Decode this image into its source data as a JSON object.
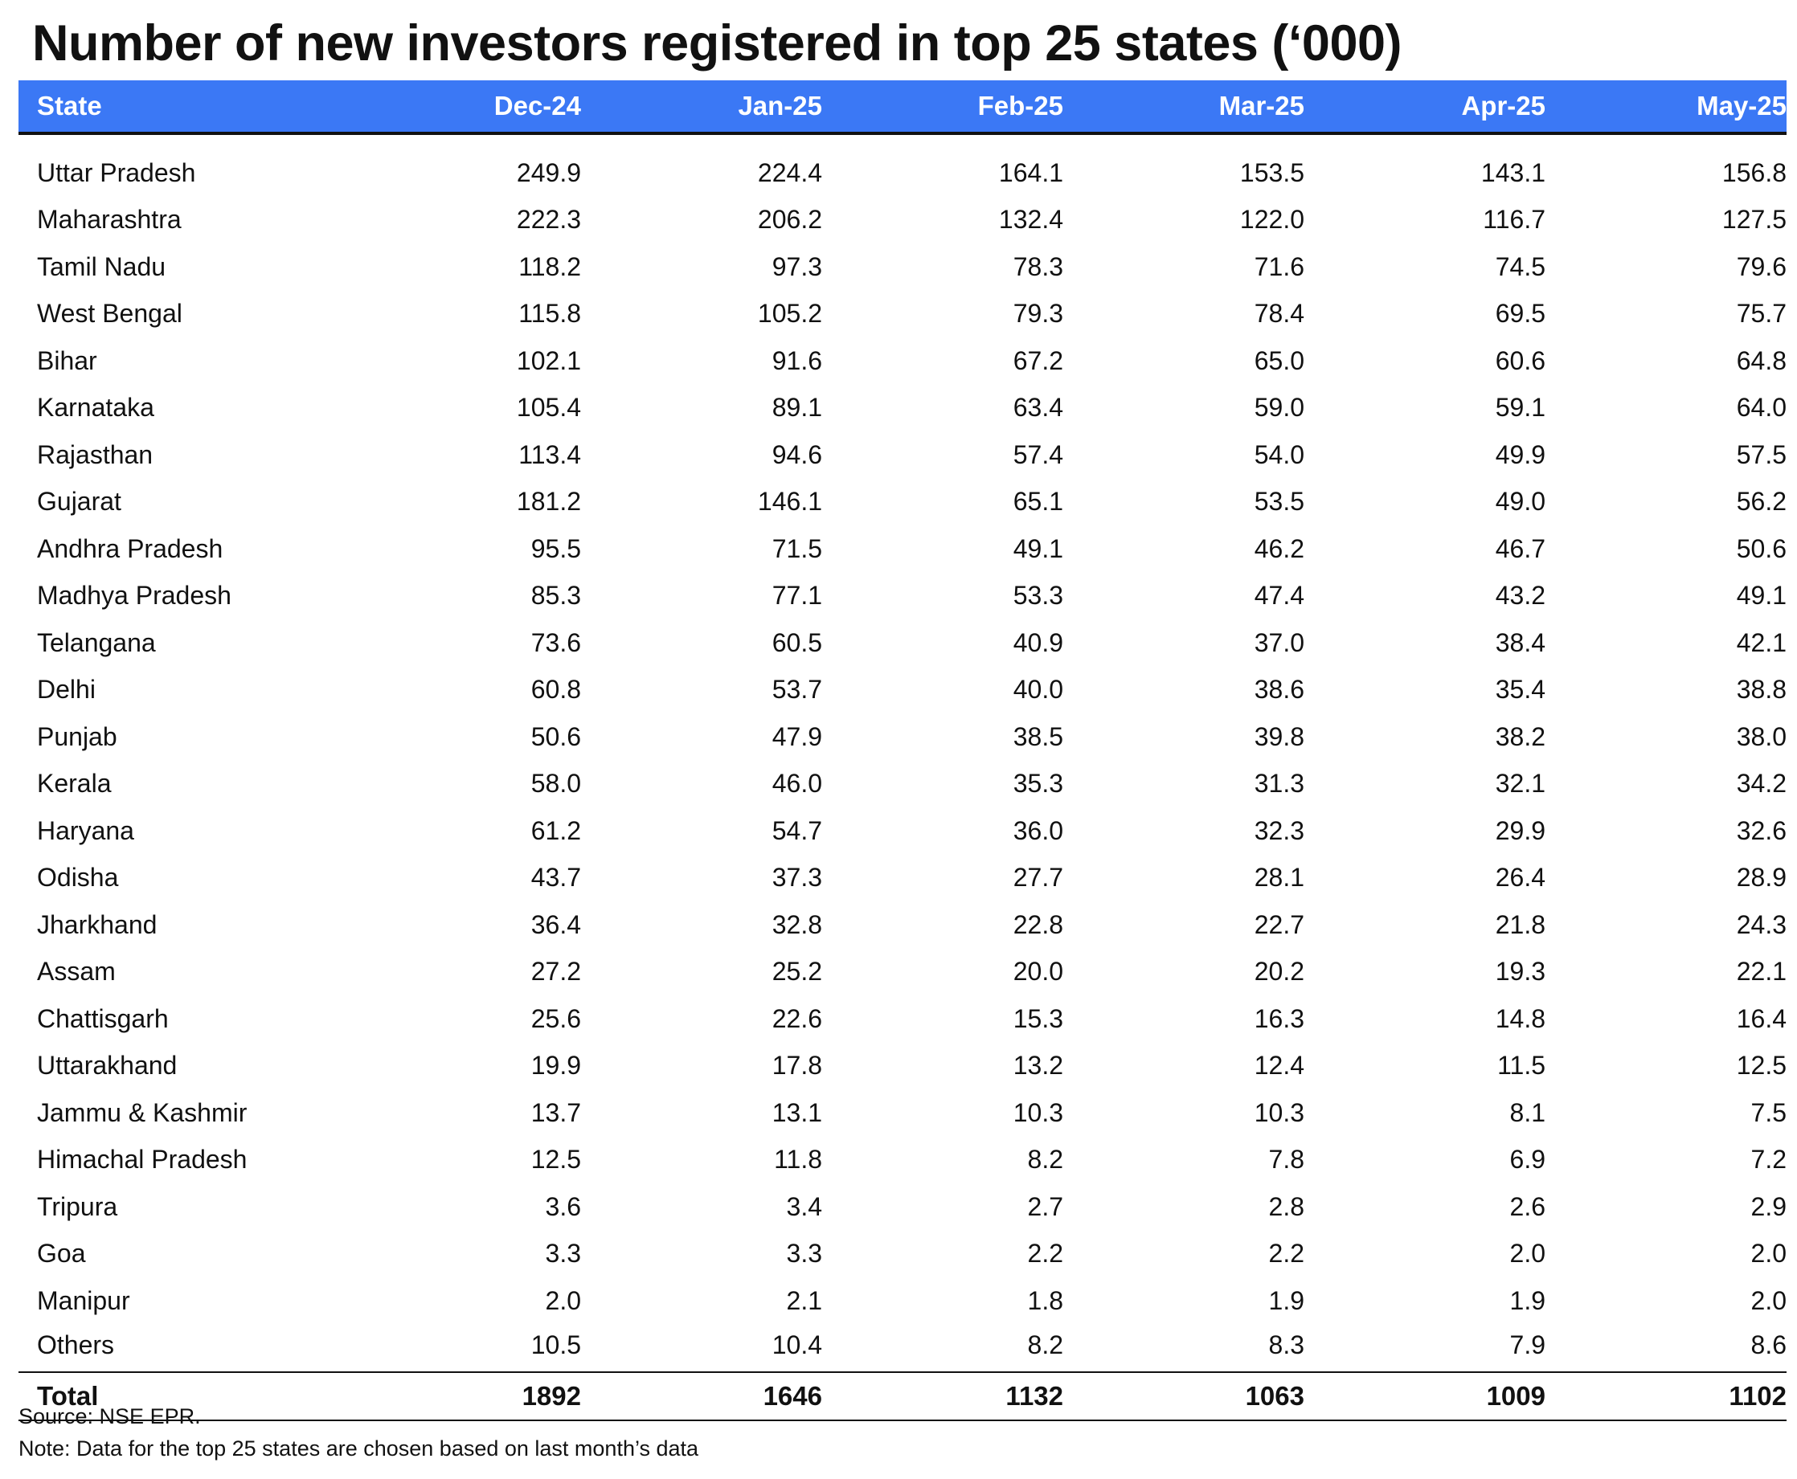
{
  "chart_data": {
    "type": "table",
    "title": "Number of new investors registered in top 25 states (‘000)",
    "columns": [
      "State",
      "Dec-24",
      "Jan-25",
      "Feb-25",
      "Mar-25",
      "Apr-25",
      "May-25"
    ],
    "rows": [
      {
        "state": "Uttar Pradesh",
        "values": [
          "249.9",
          "224.4",
          "164.1",
          "153.5",
          "143.1",
          "156.8"
        ]
      },
      {
        "state": "Maharashtra",
        "values": [
          "222.3",
          "206.2",
          "132.4",
          "122.0",
          "116.7",
          "127.5"
        ]
      },
      {
        "state": "Tamil Nadu",
        "values": [
          "118.2",
          "97.3",
          "78.3",
          "71.6",
          "74.5",
          "79.6"
        ]
      },
      {
        "state": "West Bengal",
        "values": [
          "115.8",
          "105.2",
          "79.3",
          "78.4",
          "69.5",
          "75.7"
        ]
      },
      {
        "state": "Bihar",
        "values": [
          "102.1",
          "91.6",
          "67.2",
          "65.0",
          "60.6",
          "64.8"
        ]
      },
      {
        "state": "Karnataka",
        "values": [
          "105.4",
          "89.1",
          "63.4",
          "59.0",
          "59.1",
          "64.0"
        ]
      },
      {
        "state": "Rajasthan",
        "values": [
          "113.4",
          "94.6",
          "57.4",
          "54.0",
          "49.9",
          "57.5"
        ]
      },
      {
        "state": "Gujarat",
        "values": [
          "181.2",
          "146.1",
          "65.1",
          "53.5",
          "49.0",
          "56.2"
        ]
      },
      {
        "state": "Andhra Pradesh",
        "values": [
          "95.5",
          "71.5",
          "49.1",
          "46.2",
          "46.7",
          "50.6"
        ]
      },
      {
        "state": "Madhya Pradesh",
        "values": [
          "85.3",
          "77.1",
          "53.3",
          "47.4",
          "43.2",
          "49.1"
        ]
      },
      {
        "state": "Telangana",
        "values": [
          "73.6",
          "60.5",
          "40.9",
          "37.0",
          "38.4",
          "42.1"
        ]
      },
      {
        "state": "Delhi",
        "values": [
          "60.8",
          "53.7",
          "40.0",
          "38.6",
          "35.4",
          "38.8"
        ]
      },
      {
        "state": "Punjab",
        "values": [
          "50.6",
          "47.9",
          "38.5",
          "39.8",
          "38.2",
          "38.0"
        ]
      },
      {
        "state": "Kerala",
        "values": [
          "58.0",
          "46.0",
          "35.3",
          "31.3",
          "32.1",
          "34.2"
        ]
      },
      {
        "state": "Haryana",
        "values": [
          "61.2",
          "54.7",
          "36.0",
          "32.3",
          "29.9",
          "32.6"
        ]
      },
      {
        "state": "Odisha",
        "values": [
          "43.7",
          "37.3",
          "27.7",
          "28.1",
          "26.4",
          "28.9"
        ]
      },
      {
        "state": "Jharkhand",
        "values": [
          "36.4",
          "32.8",
          "22.8",
          "22.7",
          "21.8",
          "24.3"
        ]
      },
      {
        "state": "Assam",
        "values": [
          "27.2",
          "25.2",
          "20.0",
          "20.2",
          "19.3",
          "22.1"
        ]
      },
      {
        "state": "Chattisgarh",
        "values": [
          "25.6",
          "22.6",
          "15.3",
          "16.3",
          "14.8",
          "16.4"
        ]
      },
      {
        "state": "Uttarakhand",
        "values": [
          "19.9",
          "17.8",
          "13.2",
          "12.4",
          "11.5",
          "12.5"
        ]
      },
      {
        "state": "Jammu & Kashmir",
        "values": [
          "13.7",
          "13.1",
          "10.3",
          "10.3",
          "8.1",
          "7.5"
        ]
      },
      {
        "state": "Himachal Pradesh",
        "values": [
          "12.5",
          "11.8",
          "8.2",
          "7.8",
          "6.9",
          "7.2"
        ]
      },
      {
        "state": "Tripura",
        "values": [
          "3.6",
          "3.4",
          "2.7",
          "2.8",
          "2.6",
          "2.9"
        ]
      },
      {
        "state": "Goa",
        "values": [
          "3.3",
          "3.3",
          "2.2",
          "2.2",
          "2.0",
          "2.0"
        ]
      },
      {
        "state": "Manipur",
        "values": [
          "2.0",
          "2.1",
          "1.8",
          "1.9",
          "1.9",
          "2.0"
        ]
      },
      {
        "state": "Others",
        "values": [
          "10.5",
          "10.4",
          "8.2",
          "8.3",
          "7.9",
          "8.6"
        ]
      }
    ],
    "total": {
      "label": "Total",
      "values": [
        "1892",
        "1646",
        "1132",
        "1063",
        "1009",
        "1102"
      ]
    },
    "header_color": "#3b78f5"
  },
  "source": "Source: NSE EPR.",
  "note": "Note: Data for the top 25 states are chosen based on last month’s data"
}
